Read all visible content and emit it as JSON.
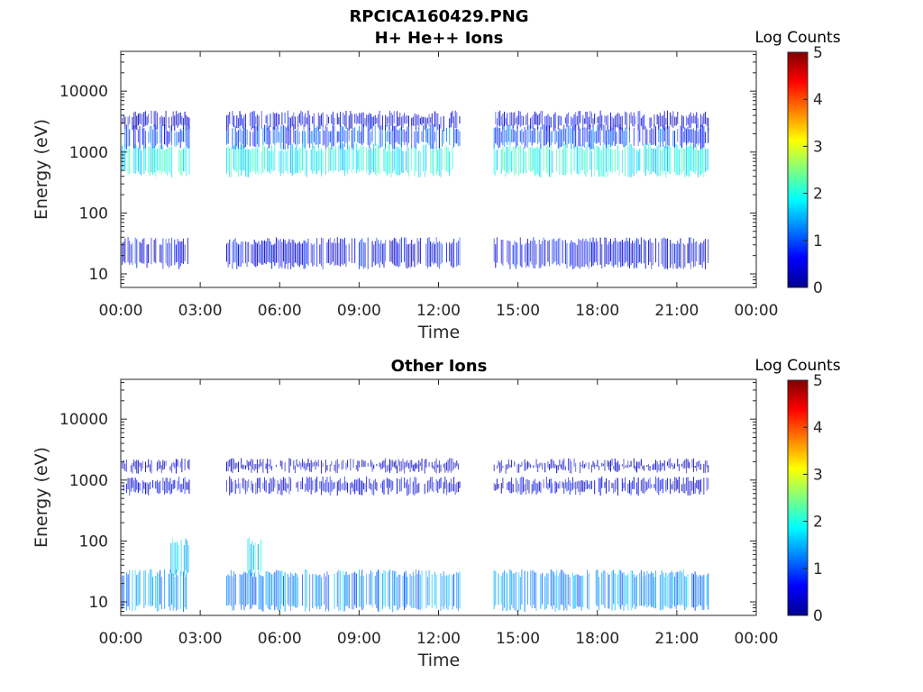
{
  "figure": {
    "file_title": "RPCICA160429.PNG"
  },
  "chart_data": [
    {
      "type": "heatmap",
      "title": "H+ He++ Ions",
      "xlabel": "Time",
      "ylabel": "Energy (eV)",
      "x_ticks": [
        "00:00",
        "03:00",
        "06:00",
        "09:00",
        "12:00",
        "15:00",
        "18:00",
        "21:00",
        "00:00"
      ],
      "x_range_hours": [
        0,
        24
      ],
      "y_scale": "log",
      "y_ticks": [
        "10",
        "100",
        "1000",
        "10000"
      ],
      "y_range_eV": [
        6,
        45000
      ],
      "grid": false,
      "colorbar": {
        "title": "Log Counts",
        "ticks": [
          "0",
          "1",
          "2",
          "3",
          "4",
          "5"
        ],
        "range": [
          0,
          5
        ],
        "colormap": "jet"
      },
      "data_gaps_hours": [
        [
          2.6,
          4.0
        ],
        [
          12.85,
          14.1
        ],
        [
          22.2,
          24.0
        ]
      ],
      "bands": [
        {
          "name": "",
          "energy_eV": [
            450,
            1200
          ],
          "log_counts": 1.9,
          "hours": [
            [
              0,
              2.6
            ],
            [
              4.0,
              12.85
            ],
            [
              14.1,
              22.2
            ]
          ]
        },
        {
          "name": "",
          "energy_eV": [
            1300,
            2500
          ],
          "log_counts": 0.9,
          "hours": [
            [
              0,
              2.6
            ],
            [
              4.0,
              12.85
            ],
            [
              14.1,
              22.2
            ]
          ]
        },
        {
          "name": "",
          "energy_eV": [
            2600,
            4200
          ],
          "log_counts": 0.4,
          "hours": [
            [
              0,
              2.6
            ],
            [
              4.0,
              12.85
            ],
            [
              14.1,
              22.2
            ]
          ]
        },
        {
          "name": "",
          "energy_eV": [
            14,
            35
          ],
          "log_counts": 0.5,
          "hours": [
            [
              0,
              2.6
            ],
            [
              4.0,
              12.85
            ],
            [
              14.1,
              22.2
            ]
          ]
        }
      ]
    },
    {
      "type": "heatmap",
      "title": "Other Ions",
      "xlabel": "Time",
      "ylabel": "Energy (eV)",
      "x_ticks": [
        "00:00",
        "03:00",
        "06:00",
        "09:00",
        "12:00",
        "15:00",
        "18:00",
        "21:00",
        "00:00"
      ],
      "x_range_hours": [
        0,
        24
      ],
      "y_scale": "log",
      "y_ticks": [
        "10",
        "100",
        "1000",
        "10000"
      ],
      "y_range_eV": [
        6,
        45000
      ],
      "grid": false,
      "colorbar": {
        "title": "Log Counts",
        "ticks": [
          "0",
          "1",
          "2",
          "3",
          "4",
          "5"
        ],
        "range": [
          0,
          5
        ],
        "colormap": "jet"
      },
      "data_gaps_hours": [
        [
          2.6,
          4.0
        ],
        [
          12.85,
          14.1
        ],
        [
          22.2,
          24.0
        ]
      ],
      "bands": [
        {
          "name": "",
          "energy_eV": [
            8,
            30
          ],
          "log_counts": 1.3,
          "hours": [
            [
              0,
              2.6
            ],
            [
              4.0,
              12.85
            ],
            [
              14.1,
              22.2
            ]
          ]
        },
        {
          "name": "",
          "energy_eV": [
            650,
            1000
          ],
          "log_counts": 0.4,
          "hours": [
            [
              0,
              2.6
            ],
            [
              4.0,
              12.85
            ],
            [
              14.1,
              22.2
            ]
          ]
        },
        {
          "name": "",
          "energy_eV": [
            1500,
            2000
          ],
          "log_counts": 0.2,
          "hours": [
            [
              0,
              2.6
            ],
            [
              4.0,
              12.85
            ],
            [
              14.1,
              22.2
            ]
          ]
        },
        {
          "name": "",
          "energy_eV": [
            30,
            100
          ],
          "log_counts": 1.7,
          "hours": [
            [
              1.9,
              2.6
            ],
            [
              4.8,
              5.3
            ]
          ]
        }
      ]
    }
  ]
}
